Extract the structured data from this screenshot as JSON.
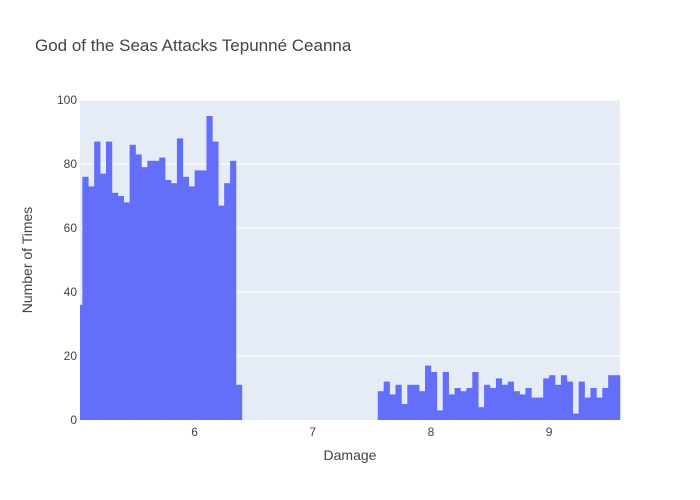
{
  "chart_data": {
    "type": "bar",
    "title": "God of the Seas Attacks Tepunné Ceanna",
    "xlabel": "Damage",
    "ylabel": "Number of Times",
    "xlim": [
      5.03,
      9.6
    ],
    "ylim": [
      0,
      100
    ],
    "xticks": [
      6,
      7,
      8,
      9
    ],
    "yticks": [
      0,
      20,
      40,
      60,
      80,
      100
    ],
    "bin_width": 0.05,
    "grid": true,
    "colors": {
      "bar": "#636efa",
      "plot_bg": "#e5ecf6",
      "grid": "#ffffff",
      "text": "#444444"
    },
    "series": [
      {
        "bins": [
          {
            "x0": 5.0,
            "count": 36
          },
          {
            "x0": 5.05,
            "count": 76
          },
          {
            "x0": 5.1,
            "count": 73
          },
          {
            "x0": 5.15,
            "count": 87
          },
          {
            "x0": 5.2,
            "count": 77
          },
          {
            "x0": 5.25,
            "count": 87
          },
          {
            "x0": 5.3,
            "count": 71
          },
          {
            "x0": 5.35,
            "count": 70
          },
          {
            "x0": 5.4,
            "count": 68
          },
          {
            "x0": 5.45,
            "count": 86
          },
          {
            "x0": 5.5,
            "count": 83
          },
          {
            "x0": 5.55,
            "count": 79
          },
          {
            "x0": 5.6,
            "count": 81
          },
          {
            "x0": 5.65,
            "count": 81
          },
          {
            "x0": 5.7,
            "count": 82
          },
          {
            "x0": 5.75,
            "count": 75
          },
          {
            "x0": 5.8,
            "count": 74
          },
          {
            "x0": 5.85,
            "count": 88
          },
          {
            "x0": 5.9,
            "count": 76
          },
          {
            "x0": 5.95,
            "count": 73
          },
          {
            "x0": 6.0,
            "count": 78
          },
          {
            "x0": 6.05,
            "count": 78
          },
          {
            "x0": 6.1,
            "count": 95
          },
          {
            "x0": 6.15,
            "count": 87
          },
          {
            "x0": 6.2,
            "count": 67
          },
          {
            "x0": 6.25,
            "count": 74
          },
          {
            "x0": 6.3,
            "count": 81
          },
          {
            "x0": 6.35,
            "count": 11
          },
          {
            "x0": 7.55,
            "count": 9
          },
          {
            "x0": 7.6,
            "count": 12
          },
          {
            "x0": 7.65,
            "count": 8
          },
          {
            "x0": 7.7,
            "count": 11
          },
          {
            "x0": 7.75,
            "count": 5
          },
          {
            "x0": 7.8,
            "count": 11
          },
          {
            "x0": 7.85,
            "count": 11
          },
          {
            "x0": 7.9,
            "count": 9
          },
          {
            "x0": 7.95,
            "count": 17
          },
          {
            "x0": 8.0,
            "count": 15
          },
          {
            "x0": 8.05,
            "count": 3
          },
          {
            "x0": 8.1,
            "count": 15
          },
          {
            "x0": 8.15,
            "count": 8
          },
          {
            "x0": 8.2,
            "count": 10
          },
          {
            "x0": 8.25,
            "count": 9
          },
          {
            "x0": 8.3,
            "count": 10
          },
          {
            "x0": 8.35,
            "count": 15
          },
          {
            "x0": 8.4,
            "count": 4
          },
          {
            "x0": 8.45,
            "count": 11
          },
          {
            "x0": 8.5,
            "count": 10
          },
          {
            "x0": 8.55,
            "count": 13
          },
          {
            "x0": 8.6,
            "count": 11
          },
          {
            "x0": 8.65,
            "count": 12
          },
          {
            "x0": 8.7,
            "count": 9
          },
          {
            "x0": 8.75,
            "count": 8
          },
          {
            "x0": 8.8,
            "count": 10
          },
          {
            "x0": 8.85,
            "count": 7
          },
          {
            "x0": 8.9,
            "count": 7
          },
          {
            "x0": 8.95,
            "count": 13
          },
          {
            "x0": 9.0,
            "count": 14
          },
          {
            "x0": 9.05,
            "count": 11
          },
          {
            "x0": 9.1,
            "count": 14
          },
          {
            "x0": 9.15,
            "count": 12
          },
          {
            "x0": 9.2,
            "count": 2
          },
          {
            "x0": 9.25,
            "count": 12
          },
          {
            "x0": 9.3,
            "count": 7
          },
          {
            "x0": 9.35,
            "count": 10
          },
          {
            "x0": 9.4,
            "count": 7
          },
          {
            "x0": 9.45,
            "count": 10
          },
          {
            "x0": 9.5,
            "count": 14
          },
          {
            "x0": 9.55,
            "count": 14
          }
        ]
      }
    ]
  }
}
